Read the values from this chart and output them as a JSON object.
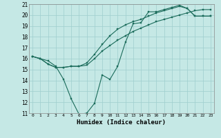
{
  "title": "",
  "xlabel": "Humidex (Indice chaleur)",
  "ylabel": "",
  "x_ticks": [
    0,
    1,
    2,
    3,
    4,
    5,
    6,
    7,
    8,
    9,
    10,
    11,
    12,
    13,
    14,
    15,
    16,
    17,
    18,
    19,
    20,
    21,
    22,
    23
  ],
  "ylim": [
    11,
    21
  ],
  "xlim": [
    -0.5,
    23.5
  ],
  "yticks": [
    11,
    12,
    13,
    14,
    15,
    16,
    17,
    18,
    19,
    20,
    21
  ],
  "background_color": "#c5e8e5",
  "grid_color": "#9ecece",
  "line_color": "#1a6b5a",
  "line1": [
    16.2,
    16.0,
    15.8,
    15.3,
    14.1,
    12.3,
    10.9,
    11.0,
    11.9,
    14.5,
    14.1,
    15.3,
    17.5,
    19.2,
    19.3,
    20.3,
    20.3,
    20.5,
    20.7,
    20.9,
    20.6,
    19.9,
    19.9,
    19.9
  ],
  "line2": [
    16.2,
    16.0,
    15.5,
    15.2,
    15.2,
    15.3,
    15.3,
    15.4,
    16.0,
    16.7,
    17.2,
    17.7,
    18.1,
    18.5,
    18.8,
    19.1,
    19.4,
    19.6,
    19.8,
    20.0,
    20.2,
    20.4,
    20.5,
    20.5
  ],
  "line3": [
    16.2,
    16.0,
    15.5,
    15.2,
    15.2,
    15.3,
    15.3,
    15.6,
    16.4,
    17.3,
    18.1,
    18.7,
    19.1,
    19.4,
    19.6,
    19.9,
    20.2,
    20.4,
    20.6,
    20.8,
    20.6,
    19.9,
    19.9,
    19.9
  ]
}
